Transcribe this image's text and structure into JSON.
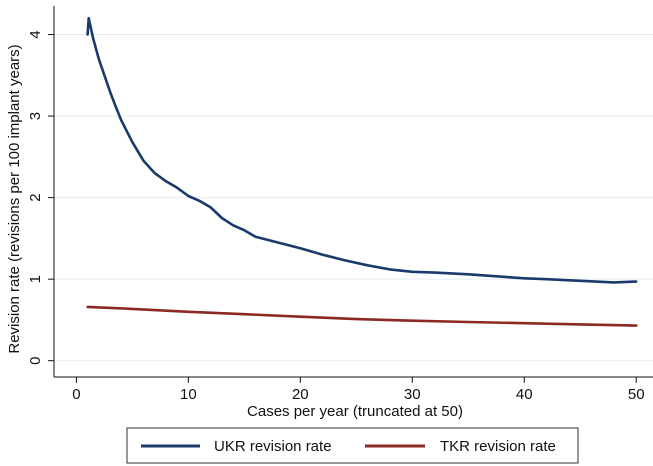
{
  "chart_data": {
    "type": "line",
    "title": "",
    "xlabel": "Cases per year (truncated at 50)",
    "ylabel": "Revision rate (revisions per 100 implant years)",
    "xlim": [
      1,
      50
    ],
    "ylim": [
      0,
      4.2
    ],
    "xticks": [
      0,
      10,
      20,
      30,
      40,
      50
    ],
    "xtick_labels": [
      "0",
      "10",
      "20",
      "30",
      "40",
      "50"
    ],
    "yticks": [
      0,
      1,
      2,
      3,
      4
    ],
    "ytick_labels": [
      "0",
      "1",
      "2",
      "3",
      "4"
    ],
    "grid": "horizontal",
    "legend_position": "bottom",
    "series": [
      {
        "name": "UKR revision rate",
        "color": "#1a3a6b",
        "x": [
          1,
          1.1,
          1.5,
          2,
          2.5,
          3,
          3.5,
          4,
          5,
          6,
          7,
          8,
          9,
          10,
          11,
          12,
          13,
          14,
          15,
          16,
          18,
          20,
          22,
          24,
          26,
          28,
          30,
          32,
          35,
          38,
          40,
          42,
          45,
          48,
          50
        ],
        "y": [
          4.0,
          4.2,
          3.95,
          3.7,
          3.5,
          3.3,
          3.12,
          2.95,
          2.68,
          2.45,
          2.3,
          2.2,
          2.12,
          2.02,
          1.96,
          1.88,
          1.75,
          1.66,
          1.6,
          1.52,
          1.45,
          1.38,
          1.3,
          1.23,
          1.17,
          1.12,
          1.09,
          1.08,
          1.06,
          1.03,
          1.01,
          1.0,
          0.98,
          0.96,
          0.97
        ]
      },
      {
        "name": "TKR revision rate",
        "color": "#8b2a24",
        "x": [
          1,
          5,
          10,
          15,
          20,
          25,
          30,
          35,
          40,
          45,
          50
        ],
        "y": [
          0.66,
          0.635,
          0.6,
          0.57,
          0.54,
          0.51,
          0.49,
          0.475,
          0.46,
          0.445,
          0.43
        ]
      }
    ]
  }
}
